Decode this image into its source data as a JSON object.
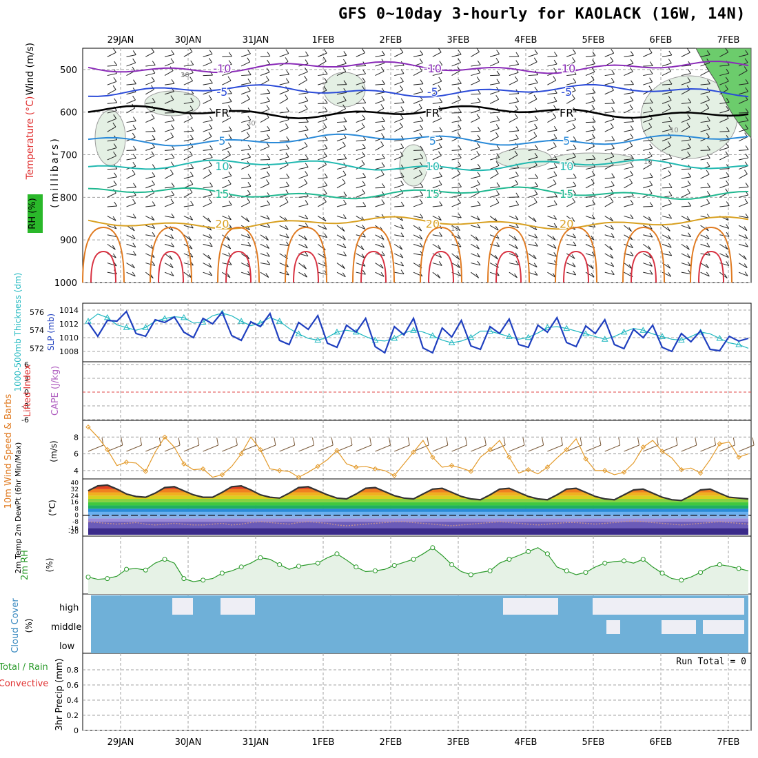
{
  "title": "GFS 0~10day 3-hourly for KAOLACK (16W, 14N)",
  "dates": [
    "29JAN",
    "30JAN",
    "31JAN",
    "1FEB",
    "2FEB",
    "3FEB",
    "4FEB",
    "5FEB",
    "6FEB",
    "7FEB"
  ],
  "run_total_label": "Run Total = 0",
  "panel_labels": {
    "wind": "Wind (m/s)",
    "temperature": "Temperature (°C)",
    "rh": "RH (%)",
    "millibars": "(millibars)",
    "thickness": "1000-500mb Thickness (dm)",
    "slp": "SLP (mb)",
    "lifted": "Lifted Index",
    "cape": "CAPE (J/kg)",
    "wind10": "10m Wind Speed & Barbs",
    "ms": "(m/s)",
    "temp2m": "2m Temp 2m DewPt (6hr Min/Max)",
    "degc": "(°C)",
    "rh2m": "2m RH",
    "pct": "(%)",
    "cloud": "Cloud Cover",
    "cloud_levels": [
      "high",
      "middle",
      "low"
    ],
    "precip": "3hr Precip (mm)",
    "total_rain": "Total / Rain",
    "convective": "Convective"
  },
  "colors": {
    "frame": "#000000",
    "grid": "#a0a0a0",
    "slp": "#1f3fbf",
    "thickness": "#20b8c0",
    "wind_speed": "#e39a2a",
    "barb": "#7a5a3a",
    "rh": "#2a9a2a",
    "rh_fill": "#e6f2e6",
    "cloud": "#6fb0d8",
    "cape_zero": "#e04040"
  },
  "chart_data": [
    {
      "type": "line",
      "name": "upper-air cross-section",
      "y_axis": "pressure (millibars)",
      "y_ticks": [
        500,
        600,
        700,
        800,
        900,
        1000
      ],
      "ylim": [
        1000,
        450
      ],
      "isotherms": [
        {
          "label": "-10",
          "pressure": 495,
          "color": "#8a2ab8"
        },
        {
          "label": "-5",
          "pressure": 550,
          "color": "#2a4ad8"
        },
        {
          "label": "FR",
          "pressure": 600,
          "color": "#000000"
        },
        {
          "label": "5",
          "pressure": 665,
          "color": "#2a8ad8"
        },
        {
          "label": "10",
          "pressure": 725,
          "color": "#20b8b0"
        },
        {
          "label": "15",
          "pressure": 790,
          "color": "#20b890"
        },
        {
          "label": "20",
          "pressure": 860,
          "color": "#d8a020"
        }
      ],
      "rh_contour_labels": [
        "10",
        "30",
        "10",
        "10",
        "10",
        "30"
      ]
    },
    {
      "type": "line",
      "name": "thickness and SLP",
      "left_ticks": [
        572,
        574,
        576
      ],
      "right_ticks": [
        1008,
        1010,
        1012,
        1014
      ],
      "series": [
        {
          "name": "SLP (mb)",
          "values": [
            1012.2,
            1010.2,
            1012.5,
            1012.4,
            1013.8,
            1010.6,
            1010.2,
            1012.6,
            1012.2,
            1013.0,
            1010.8,
            1010.0,
            1012.8,
            1012.0,
            1013.7,
            1010.3,
            1009.6,
            1012.3,
            1011.6,
            1013.5,
            1009.6,
            1009.0,
            1012.2,
            1011.2,
            1013.2,
            1009.2,
            1008.6,
            1011.8,
            1010.8,
            1012.8,
            1008.7,
            1007.8,
            1011.6,
            1010.4,
            1012.8,
            1008.5,
            1007.8,
            1011.4,
            1010.1,
            1012.5,
            1008.8,
            1008.3,
            1011.6,
            1010.6,
            1012.7,
            1009.0,
            1008.6,
            1011.8,
            1010.8,
            1012.9,
            1009.3,
            1008.7,
            1011.7,
            1010.6,
            1012.6,
            1009.0,
            1008.4,
            1011.2,
            1010.0,
            1011.8,
            1008.6,
            1008.0,
            1010.6,
            1009.4,
            1011.0,
            1008.3,
            1008.1,
            1010.2,
            1009.5,
            1009.9
          ]
        },
        {
          "name": "1000-500mb Thickness (dm)",
          "values": [
            575.0,
            575.8,
            575.4,
            574.6,
            574.3,
            574.0,
            574.3,
            575.0,
            575.3,
            575.5,
            575.4,
            574.8,
            574.9,
            575.6,
            575.9,
            575.6,
            575.0,
            574.5,
            574.8,
            575.4,
            575.0,
            574.2,
            573.6,
            573.1,
            572.9,
            573.2,
            573.8,
            574.0,
            573.8,
            573.3,
            572.9,
            572.8,
            573.1,
            573.7,
            574.0,
            573.8,
            573.4,
            572.9,
            572.6,
            572.8,
            573.2,
            573.9,
            573.9,
            573.6,
            573.3,
            573.0,
            573.2,
            573.7,
            574.3,
            574.4,
            574.2,
            573.9,
            573.6,
            573.3,
            573.0,
            573.3,
            573.8,
            574.2,
            574.0,
            573.6,
            573.3,
            573.0,
            572.9,
            573.3,
            573.8,
            573.6,
            573.1,
            572.6,
            572.4,
            572.0
          ]
        }
      ]
    },
    {
      "type": "line",
      "name": "lifted index and CAPE",
      "left_ticks": [
        "6",
        "3",
        "0",
        "-3",
        "-6"
      ],
      "series": [
        {
          "name": "Lifted Index",
          "values": []
        }
      ]
    },
    {
      "type": "line",
      "name": "10m wind",
      "y_ticks": [
        4,
        6,
        8
      ],
      "series": [
        {
          "name": "Speed",
          "values": [
            9.2,
            8.0,
            6.5,
            4.6,
            5.0,
            4.9,
            3.9,
            6.2,
            8.0,
            6.8,
            4.8,
            4.1,
            4.2,
            3.2,
            3.5,
            4.5,
            6.0,
            8.0,
            6.5,
            4.2,
            4.0,
            3.9,
            3.2,
            3.8,
            4.5,
            5.3,
            6.4,
            4.8,
            4.4,
            4.5,
            4.2,
            4.0,
            3.4,
            4.8,
            6.2,
            7.6,
            5.6,
            4.4,
            4.6,
            4.3,
            3.9,
            5.6,
            6.5,
            7.6,
            5.6,
            3.7,
            4.1,
            3.6,
            4.4,
            5.5,
            6.5,
            7.8,
            5.4,
            4.0,
            4.0,
            3.5,
            3.8,
            4.9,
            6.8,
            7.6,
            6.3,
            5.5,
            4.1,
            4.3,
            3.7,
            5.3,
            7.2,
            7.4,
            5.6,
            6.0
          ]
        }
      ]
    },
    {
      "type": "area",
      "name": "2m temperature",
      "y_ticks": [
        40,
        32,
        24,
        16,
        8,
        0,
        -8,
        -16,
        -20
      ],
      "series": [
        {
          "name": "2m Temp",
          "values": [
            30,
            36,
            37,
            32,
            26,
            23,
            22,
            27,
            34,
            35,
            30,
            25,
            22,
            22,
            28,
            35,
            36,
            31,
            25,
            22,
            21,
            27,
            34,
            35,
            30,
            25,
            21,
            20,
            26,
            33,
            34,
            29,
            24,
            21,
            20,
            26,
            32,
            33,
            28,
            23,
            20,
            19,
            25,
            32,
            33,
            28,
            23,
            20,
            19,
            25,
            32,
            33,
            28,
            23,
            20,
            19,
            25,
            31,
            32,
            27,
            22,
            19,
            18,
            24,
            31,
            32,
            27,
            22,
            21,
            20
          ]
        },
        {
          "name": "2m DewPt",
          "values": [
            -8,
            -9,
            -10,
            -11,
            -10,
            -9,
            -11,
            -12,
            -11,
            -10,
            -11,
            -12,
            -12,
            -11,
            -10,
            -12,
            -11,
            -9,
            -8,
            -9,
            -10,
            -11,
            -9,
            -8,
            -9,
            -10,
            -12,
            -13,
            -12,
            -11,
            -10,
            -9,
            -8,
            -8,
            -9,
            -10,
            -11,
            -12,
            -13,
            -12,
            -11,
            -10,
            -9,
            -8,
            -9,
            -10,
            -11,
            -12,
            -11,
            -10,
            -9,
            -9,
            -10,
            -11,
            -10,
            -9,
            -8,
            -7,
            -8,
            -9,
            -10,
            -11,
            -12,
            -11,
            -10,
            -9,
            -8,
            -9,
            -10,
            -11
          ]
        }
      ]
    },
    {
      "type": "line",
      "name": "2m RH",
      "series": [
        {
          "name": "2m RH",
          "values": [
            22,
            19,
            20,
            23,
            32,
            33,
            31,
            40,
            45,
            40,
            20,
            16,
            18,
            20,
            27,
            30,
            35,
            40,
            47,
            45,
            38,
            32,
            36,
            38,
            40,
            47,
            52,
            44,
            35,
            29,
            30,
            32,
            37,
            41,
            45,
            52,
            60,
            50,
            38,
            29,
            25,
            28,
            30,
            40,
            45,
            50,
            55,
            60,
            52,
            35,
            30,
            25,
            28,
            35,
            40,
            42,
            43,
            40,
            45,
            35,
            27,
            20,
            18,
            22,
            28,
            35,
            38,
            36,
            33,
            30
          ]
        }
      ]
    },
    {
      "type": "heatmap",
      "name": "cloud cover",
      "levels": [
        "high",
        "middle",
        "low"
      ]
    },
    {
      "type": "bar",
      "name": "3hr precip",
      "y_ticks": [
        0,
        0.2,
        0.4,
        0.6,
        0.8
      ],
      "ylim": [
        0,
        1
      ]
    }
  ]
}
